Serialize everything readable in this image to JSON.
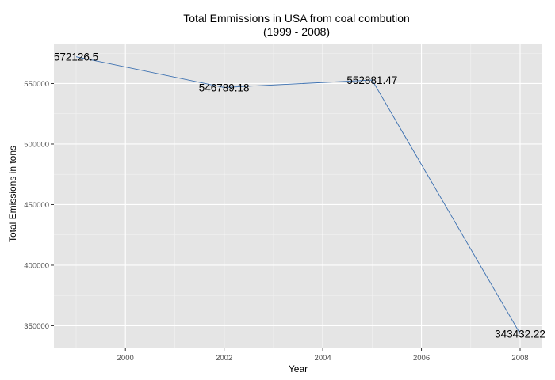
{
  "chart_data": {
    "type": "line",
    "title": "Total Emmissions in USA from coal combution",
    "subtitle": "(1999 - 2008)",
    "xlabel": "Year",
    "ylabel": "Total Emissions in tons",
    "x": [
      1999,
      2002,
      2005,
      2008
    ],
    "values": [
      572126.5,
      546789.18,
      552881.47,
      343432.22
    ],
    "data_labels": [
      "572126.5",
      "546789.18",
      "552881.47",
      "343432.22"
    ],
    "xlim": [
      1998.55,
      2008.45
    ],
    "ylim": [
      332000,
      583000
    ],
    "x_ticks": [
      2000,
      2002,
      2004,
      2006,
      2008
    ],
    "x_tick_labels": [
      "2000",
      "2002",
      "2004",
      "2006",
      "2008"
    ],
    "y_ticks": [
      350000,
      400000,
      450000,
      500000,
      550000
    ],
    "y_tick_labels": [
      "350000",
      "400000",
      "450000",
      "500000",
      "550000"
    ],
    "grid": true,
    "legend": "none",
    "colors": {
      "panel_background": "#e5e5e5",
      "grid_major": "#ffffff",
      "grid_minor": "#f2f2f2",
      "line": "#3a6fb0"
    }
  }
}
